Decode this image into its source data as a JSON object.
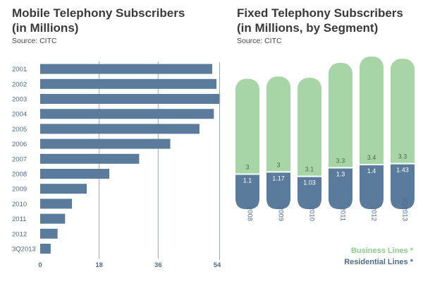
{
  "mobile": {
    "title_line1": "Mobile Telephony Subscribers",
    "title_line2": "(in Millions)",
    "source": "Source: CITC"
  },
  "fixed": {
    "title_line1": "Fixed Telephony Subscribers",
    "title_line2": "(in Millions, by Segment)",
    "source": "Source: CITC"
  },
  "legend": {
    "business": "Business Lines *",
    "residential": "Residential Lines *"
  },
  "colors": {
    "bar_blue": "#5a7b9b",
    "business_green": "#a8d5a8",
    "residential_blue": "#5a7b9b",
    "business_label": "#8ccc8c",
    "residential_label": "#4d6c8c",
    "year_label": "#4d6c8c",
    "grid": "#9aa7b4"
  },
  "chart_data": [
    {
      "type": "bar",
      "orientation": "horizontal",
      "title": "Mobile Telephony Subscribers (in Millions)",
      "categories": [
        "2001",
        "2002",
        "2003",
        "2004",
        "2005",
        "2006",
        "2007",
        "2008",
        "2009",
        "2010",
        "2011",
        "2012",
        "3Q2013"
      ],
      "values": [
        52.5,
        53.8,
        54.9,
        53.0,
        48.6,
        39.7,
        30.2,
        21.1,
        14.2,
        9.7,
        7.6,
        5.3,
        3.2
      ],
      "xlim": [
        0,
        54
      ],
      "xticks": [
        "0",
        "18",
        "36",
        "54"
      ],
      "grid": true
    },
    {
      "type": "bar",
      "stacked": true,
      "title": "Fixed Telephony Subscribers (in Millions, by Segment)",
      "categories": [
        "2008",
        "2009",
        "2010",
        "2011",
        "2012",
        "3Q2013"
      ],
      "series": [
        {
          "name": "Residential Lines *",
          "values": [
            1.1,
            1.17,
            1.03,
            1.3,
            1.4,
            1.43
          ]
        },
        {
          "name": "Business Lines *",
          "values": [
            3,
            3,
            3.1,
            3.3,
            3.4,
            3.3
          ]
        }
      ],
      "labels_residential": [
        "1.1",
        "1.17",
        "1.03",
        "1.3",
        "1.4",
        "1.43"
      ],
      "labels_business": [
        "3",
        "3",
        "3.1",
        "3.3",
        "3.4",
        "3.3"
      ],
      "legend_position": "bottom-right"
    }
  ]
}
